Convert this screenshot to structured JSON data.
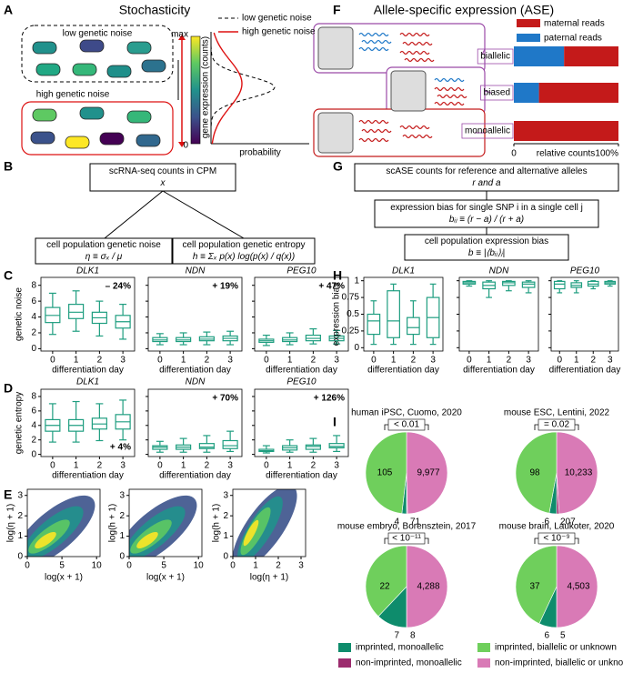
{
  "panel_labels": [
    "A",
    "B",
    "C",
    "D",
    "E",
    "F",
    "G",
    "H",
    "I"
  ],
  "stochasticity": {
    "title": "Stochasticity",
    "low_noise_label": "low genetic noise",
    "high_noise_label": "high genetic noise",
    "colorbar_max": "max",
    "colorbar_min": "0",
    "y_label": "gene expression (counts)",
    "x_label": "probability",
    "legend": [
      "low genetic noise",
      "high genetic noise"
    ]
  },
  "noise_workflow": {
    "input": [
      "scRNA-seq counts in CPM",
      "x"
    ],
    "noise": [
      "cell population genetic noise",
      "η ≡ σₓ / μ"
    ],
    "entropy": [
      "cell population genetic entropy",
      "h ≡ Σₓ p(x) log(p(x) / q(x))"
    ]
  },
  "genetic_noise": {
    "type": "box",
    "y_label": "genetic noise",
    "x_label": "differentiation day",
    "color": "#1f9e80",
    "categories": [
      "0",
      "1",
      "2",
      "3"
    ],
    "ylim": [
      -0.3,
      9
    ],
    "yticks": [
      0,
      2,
      4,
      6,
      8
    ],
    "panels": [
      {
        "title": "DLK1",
        "annotation": "– 24%",
        "boxes": [
          [
            1.8,
            3.3,
            4.2,
            5.2,
            7.0
          ],
          [
            2.2,
            3.8,
            4.6,
            5.6,
            7.3
          ],
          [
            1.6,
            3.2,
            3.9,
            4.6,
            6.0
          ],
          [
            1.2,
            2.6,
            3.4,
            4.2,
            5.6
          ]
        ]
      },
      {
        "title": "NDN",
        "annotation": "+ 19%",
        "boxes": [
          [
            0.5,
            0.9,
            1.1,
            1.4,
            1.9
          ],
          [
            0.5,
            0.9,
            1.1,
            1.4,
            2.0
          ],
          [
            0.5,
            1.0,
            1.2,
            1.5,
            2.1
          ],
          [
            0.5,
            1.0,
            1.3,
            1.6,
            2.2
          ]
        ]
      },
      {
        "title": "PEG10",
        "annotation": "+ 47%",
        "boxes": [
          [
            0.4,
            0.8,
            1.0,
            1.2,
            1.7
          ],
          [
            0.5,
            0.9,
            1.1,
            1.4,
            2.0
          ],
          [
            0.6,
            1.0,
            1.3,
            1.7,
            2.5
          ],
          [
            0.6,
            1.0,
            1.3,
            1.6,
            2.3
          ]
        ]
      }
    ]
  },
  "genetic_entropy": {
    "type": "box",
    "y_label": "genetic entropy",
    "x_label": "differentiation day",
    "color": "#1f9e80",
    "categories": [
      "0",
      "1",
      "2",
      "3"
    ],
    "ylim": [
      -0.3,
      9
    ],
    "yticks": [
      0,
      2,
      4,
      6,
      8
    ],
    "panels": [
      {
        "title": "DLK1",
        "annotation": "+ 4%",
        "boxes": [
          [
            1.7,
            3.2,
            4.0,
            4.8,
            7.0
          ],
          [
            1.7,
            3.2,
            4.0,
            4.8,
            7.3
          ],
          [
            1.9,
            3.5,
            4.2,
            5.0,
            7.0
          ],
          [
            2.0,
            3.5,
            4.5,
            5.5,
            7.5
          ]
        ]
      },
      {
        "title": "NDN",
        "annotation": "+ 70%",
        "boxes": [
          [
            0.3,
            0.7,
            1.0,
            1.2,
            1.8
          ],
          [
            0.3,
            0.7,
            1.0,
            1.3,
            2.2
          ],
          [
            0.3,
            0.8,
            1.0,
            1.5,
            2.6
          ],
          [
            0.4,
            0.8,
            1.2,
            1.9,
            3.2
          ]
        ]
      },
      {
        "title": "PEG10",
        "annotation": "+ 126%",
        "boxes": [
          [
            0.2,
            0.4,
            0.5,
            0.7,
            1.2
          ],
          [
            0.3,
            0.6,
            0.9,
            1.2,
            2.0
          ],
          [
            0.3,
            0.7,
            1.1,
            1.3,
            2.2
          ],
          [
            0.4,
            0.9,
            1.1,
            1.5,
            2.6
          ]
        ]
      }
    ]
  },
  "density_maps": {
    "type": "heatmap",
    "panels": [
      {
        "x_label": "log(x + 1)",
        "y_label": "log(η + 1)",
        "xlim": [
          0,
          10.5
        ],
        "ylim": [
          0,
          3.3
        ],
        "xticks": [
          0,
          5,
          10
        ],
        "yticks": [
          0,
          1,
          2,
          3
        ]
      },
      {
        "x_label": "log(x + 1)",
        "y_label": "log(h + 1)",
        "xlim": [
          0,
          10.5
        ],
        "ylim": [
          0,
          3.3
        ],
        "xticks": [
          0,
          5,
          10
        ],
        "yticks": [
          0,
          1,
          2,
          3
        ]
      },
      {
        "x_label": "log(η + 1)",
        "y_label": "log(h + 1)",
        "xlim": [
          0,
          3.2
        ],
        "ylim": [
          0,
          3.3
        ],
        "xticks": [
          0,
          1,
          2,
          3
        ],
        "yticks": [
          0,
          1,
          2,
          3
        ]
      }
    ]
  },
  "ase": {
    "type": "bar",
    "title": "Allele-specific expression (ASE)",
    "orientation": "horizontal",
    "categories": [
      "biallelic",
      "biased",
      "monoallelic"
    ],
    "series": [
      {
        "name": "paternal reads",
        "color": "#1f78c8",
        "values": [
          48,
          24,
          0
        ]
      },
      {
        "name": "maternal reads",
        "color": "#c41a1a",
        "values": [
          52,
          76,
          100
        ]
      }
    ],
    "xlim": [
      0,
      100
    ],
    "xticks": [
      0,
      {
        "value": 100,
        "label": "100%"
      }
    ],
    "x_label": "relative counts"
  },
  "ase_workflow": {
    "input": [
      "scASE counts for reference and alternative alleles",
      "r and a"
    ],
    "snp_bias": [
      "expression bias for single SNP i in a single cell j",
      "bᵢⱼ ≡ (r − a) / (r + a)"
    ],
    "population_bias": [
      "cell population expression bias",
      "b ≡ |⟨bᵢⱼ⟩ⱼ|"
    ]
  },
  "expression_bias": {
    "type": "box",
    "y_label": "expression bias",
    "x_label": "differentiation day",
    "color": "#1f9e80",
    "categories": [
      "0",
      "1",
      "2",
      "3"
    ],
    "ylim": [
      -0.05,
      1.05
    ],
    "yticks": [
      0,
      0.25,
      0.5,
      0.75,
      1
    ],
    "panels": [
      {
        "title": "DLK1",
        "boxes": [
          [
            0.05,
            0.2,
            0.4,
            0.5,
            0.7
          ],
          [
            0.05,
            0.15,
            0.4,
            0.85,
            0.95
          ],
          [
            0.05,
            0.2,
            0.3,
            0.45,
            0.7
          ],
          [
            0.05,
            0.15,
            0.45,
            0.75,
            0.95
          ]
        ]
      },
      {
        "title": "NDN",
        "boxes": [
          [
            0.92,
            0.95,
            0.97,
            0.99,
            1.0
          ],
          [
            0.75,
            0.88,
            0.93,
            0.98,
            1.0
          ],
          [
            0.85,
            0.93,
            0.97,
            0.99,
            1.0
          ],
          [
            0.82,
            0.9,
            0.95,
            0.98,
            1.0
          ]
        ]
      },
      {
        "title": "PEG10",
        "boxes": [
          [
            0.82,
            0.88,
            0.95,
            0.99,
            1.0
          ],
          [
            0.82,
            0.9,
            0.93,
            0.97,
            1.0
          ],
          [
            0.88,
            0.92,
            0.95,
            0.99,
            1.0
          ],
          [
            0.92,
            0.95,
            0.97,
            0.99,
            1.0
          ]
        ]
      }
    ]
  },
  "imprinting_pies": {
    "type": "pie",
    "legend": [
      {
        "name": "imprinted, monoallelic",
        "color": "#0e8c6c"
      },
      {
        "name": "imprinted, biallelic or unknown",
        "color": "#6fcf5c"
      },
      {
        "name": "non-imprinted, monoallelic",
        "color": "#9c2c6e"
      },
      {
        "name": "non-imprinted, biallelic or unknown",
        "color": "#d97ab6"
      }
    ],
    "pies": [
      {
        "title": "human iPSC, Cuomo, 2020",
        "p_value": "< 0.01",
        "values": [
          4,
          105,
          71,
          9977
        ],
        "value_labels": [
          "4",
          "105",
          "71",
          "9,977"
        ]
      },
      {
        "title": "mouse ESC, Lentini, 2022",
        "p_value": "= 0.02",
        "values": [
          6,
          98,
          207,
          10233
        ],
        "value_labels": [
          "6",
          "98",
          "207",
          "10,233"
        ]
      },
      {
        "title": "mouse embryo, Borensztein, 2017",
        "p_value": "< 10⁻¹¹",
        "values": [
          7,
          22,
          8,
          4288
        ],
        "value_labels": [
          "7",
          "22",
          "8",
          "4,288"
        ]
      },
      {
        "title": "mouse brain, Laukoter, 2020",
        "p_value": "< 10⁻⁹",
        "values": [
          6,
          37,
          5,
          4503
        ],
        "value_labels": [
          "6",
          "37",
          "5",
          "4,503"
        ]
      }
    ]
  }
}
